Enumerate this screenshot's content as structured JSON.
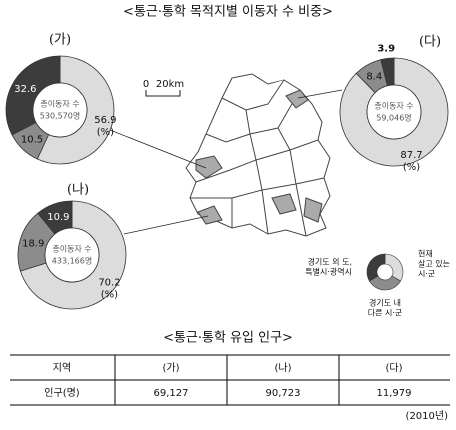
{
  "title": "<통근·통학 목적지별 이동자 수 비중>",
  "chart_data": [
    {
      "type": "pie",
      "title": "(가)",
      "total_label": "총이동자 수",
      "total": "530,570명",
      "unit_label": "(%)",
      "values": [
        56.9,
        10.5,
        32.6
      ],
      "colors": [
        "#dcdcdc",
        "#8c8c8c",
        "#3c3c3c"
      ]
    },
    {
      "type": "pie",
      "title": "(다)",
      "total_label": "총이동자 수",
      "total": "59,046명",
      "unit_label": "(%)",
      "values": [
        87.7,
        8.4,
        3.9
      ],
      "colors": [
        "#dcdcdc",
        "#8c8c8c",
        "#3c3c3c"
      ]
    },
    {
      "type": "pie",
      "title": "(나)",
      "total_label": "총이동자 수",
      "total": "433,166명",
      "unit_label": "(%)",
      "values": [
        70.2,
        18.9,
        10.9
      ],
      "colors": [
        "#dcdcdc",
        "#8c8c8c",
        "#3c3c3c"
      ]
    }
  ],
  "legend": {
    "items": [
      {
        "lines": [
          "현재",
          "살고 있는",
          "시·군"
        ],
        "color": "#dcdcdc"
      },
      {
        "lines": [
          "경기도 내",
          "다른 시·군"
        ],
        "color": "#8c8c8c"
      },
      {
        "lines": [
          "경기도 외 도,",
          "특별시·광역시"
        ],
        "color": "#3c3c3c"
      }
    ]
  },
  "scale_bar": {
    "start": "0",
    "end": "20km"
  },
  "table": {
    "title": "<통근·통학 유입 인구>",
    "header": [
      "지역",
      "(가)",
      "(나)",
      "(다)"
    ],
    "rows": [
      [
        "인구(명)",
        "69,127",
        "90,723",
        "11,979"
      ]
    ],
    "note": "(2010년)"
  }
}
